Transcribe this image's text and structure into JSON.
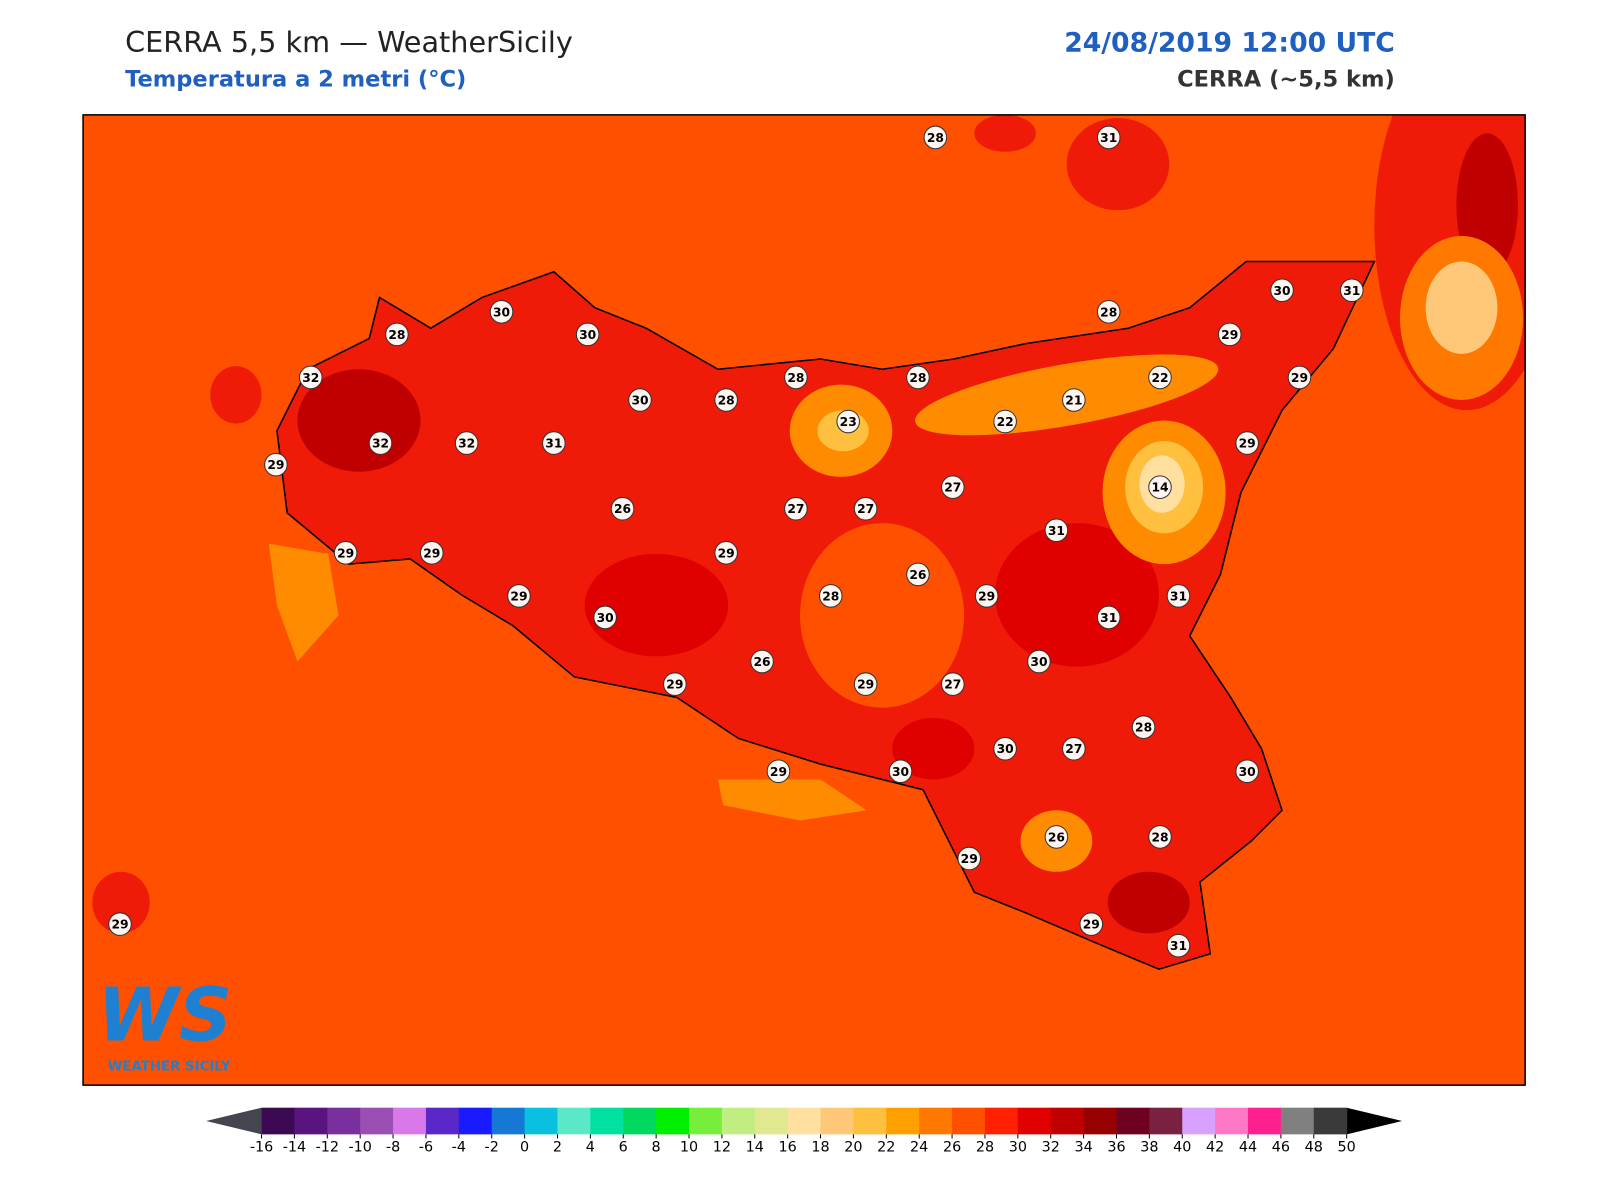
{
  "header": {
    "title": "CERRA 5,5 km — WeatherSicily",
    "subtitle": "Temperatura a 2 metri (°C)",
    "datetime": "24/08/2019 12:00 UTC",
    "model": "CERRA (~5,5 km)"
  },
  "map": {
    "stations": [
      28,
      31,
      30,
      28,
      30,
      32,
      30,
      28,
      28,
      28,
      28,
      30,
      31,
      29,
      22,
      29,
      21,
      22,
      23,
      32,
      32,
      31,
      29,
      29,
      14,
      27,
      26,
      27,
      27,
      31,
      29,
      29,
      29,
      26,
      29,
      28,
      29,
      31,
      30,
      31,
      30,
      26,
      29,
      29,
      27,
      28,
      30,
      27,
      30,
      29,
      30,
      29,
      26,
      28,
      29,
      29,
      31
    ]
  },
  "colorbar": {
    "under_color": "#45454f",
    "over_color": "#000000",
    "colors": [
      "#3b0a52",
      "#5a1480",
      "#7a2f9e",
      "#9b4fb5",
      "#d978e8",
      "#5a28c8",
      "#1a1aff",
      "#1478d4",
      "#0ac0e0",
      "#5ae8c8",
      "#00e0a0",
      "#00d860",
      "#00ee00",
      "#78ee3c",
      "#c0ee80",
      "#e0e890",
      "#ffe0a0",
      "#ffc878",
      "#ffc040",
      "#ffa000",
      "#ff7800",
      "#ff5000",
      "#ff2000",
      "#e00000",
      "#c00000",
      "#960000",
      "#6e0020",
      "#7a2040",
      "#d8a0ff",
      "#ff78c8",
      "#ff2090",
      "#808080",
      "#3a3a3a"
    ],
    "ticks": [
      -16,
      -14,
      -12,
      -10,
      -8,
      -6,
      -4,
      -2,
      0,
      2,
      4,
      6,
      8,
      10,
      12,
      14,
      16,
      18,
      20,
      22,
      24,
      26,
      28,
      30,
      32,
      34,
      36,
      38,
      40,
      42,
      44,
      46,
      48,
      50
    ]
  },
  "logo": {
    "mark": "WS",
    "name": "WEATHER SICILY"
  }
}
